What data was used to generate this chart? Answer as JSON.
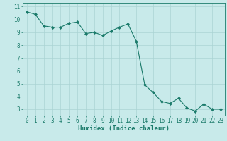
{
  "x": [
    0,
    1,
    2,
    3,
    4,
    5,
    6,
    7,
    8,
    9,
    10,
    11,
    12,
    13,
    14,
    15,
    16,
    17,
    18,
    19,
    20,
    21,
    22,
    23
  ],
  "y": [
    10.6,
    10.4,
    9.5,
    9.4,
    9.4,
    9.7,
    9.8,
    8.9,
    9.0,
    8.75,
    9.1,
    9.4,
    9.65,
    8.3,
    4.9,
    4.3,
    3.6,
    3.45,
    3.85,
    3.1,
    2.85,
    3.4,
    3.0,
    3.0
  ],
  "line_color": "#1a7a6a",
  "marker": "D",
  "marker_size": 2.0,
  "bg_color": "#c8eaea",
  "grid_color": "#aad4d4",
  "xlabel": "Humidex (Indice chaleur)",
  "xlabel_fontsize": 6.5,
  "tick_fontsize": 5.5,
  "ylim": [
    2.5,
    11.3
  ],
  "xlim": [
    -0.5,
    23.5
  ],
  "yticks": [
    3,
    4,
    5,
    6,
    7,
    8,
    9,
    10,
    11
  ],
  "xticks": [
    0,
    1,
    2,
    3,
    4,
    5,
    6,
    7,
    8,
    9,
    10,
    11,
    12,
    13,
    14,
    15,
    16,
    17,
    18,
    19,
    20,
    21,
    22,
    23
  ]
}
